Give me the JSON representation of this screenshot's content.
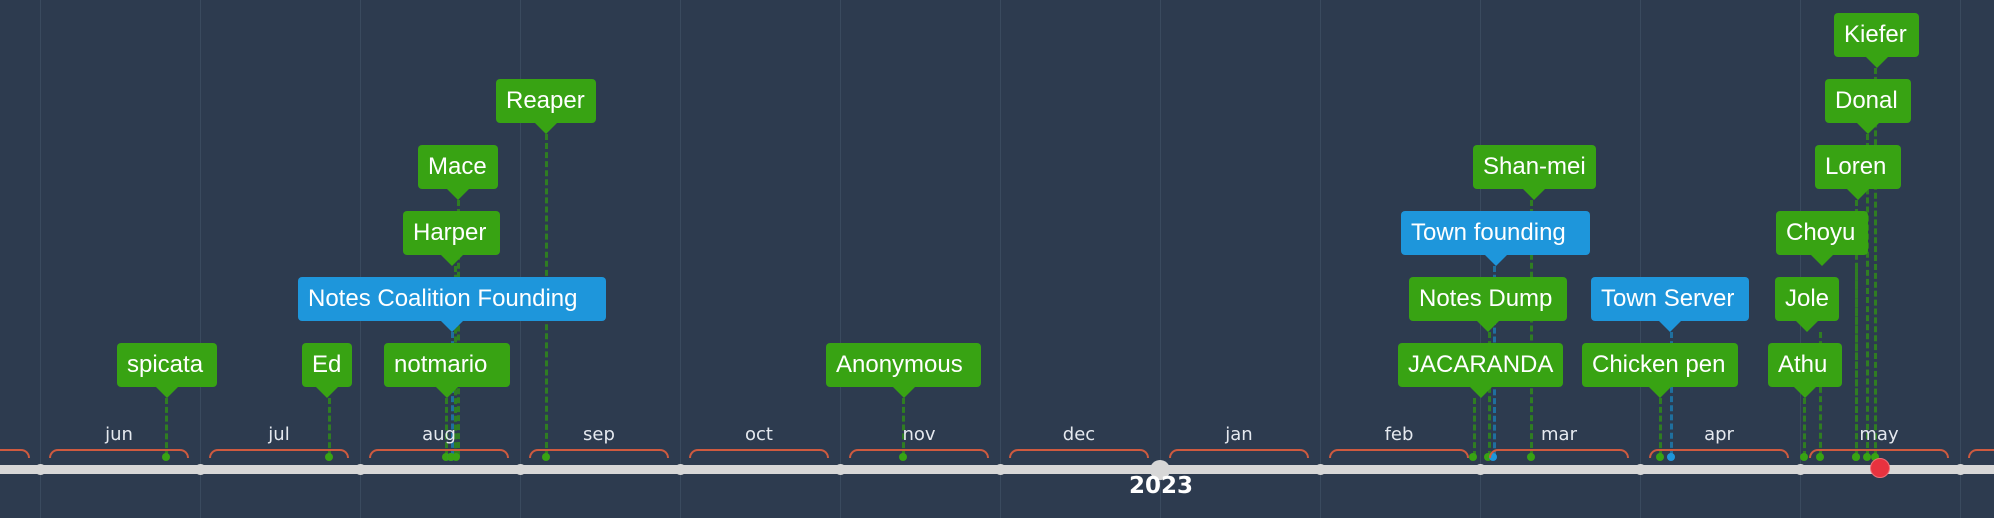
{
  "timeline": {
    "year_label": "2023",
    "months": [
      "jun",
      "jul",
      "aug",
      "sep",
      "oct",
      "nov",
      "dec",
      "jan",
      "feb",
      "mar",
      "apr",
      "may"
    ],
    "colors": {
      "background": "#2d3b4f",
      "axis": "#d7d7d7",
      "bracket": "#cf5a3f",
      "person_event": "#38a313",
      "milestone_event": "#1e96db",
      "now_marker": "#e8323f"
    },
    "events": [
      {
        "label": "spicata",
        "kind": "person"
      },
      {
        "label": "Ed",
        "kind": "person"
      },
      {
        "label": "notmario",
        "kind": "person"
      },
      {
        "label": "Notes Coalition Founding",
        "kind": "milestone"
      },
      {
        "label": "Harper",
        "kind": "person"
      },
      {
        "label": "Mace",
        "kind": "person"
      },
      {
        "label": "Reaper",
        "kind": "person"
      },
      {
        "label": "Anonymous",
        "kind": "person"
      },
      {
        "label": "JACARANDA",
        "kind": "person"
      },
      {
        "label": "Notes Dump",
        "kind": "person"
      },
      {
        "label": "Town founding",
        "kind": "milestone"
      },
      {
        "label": "Shan-mei",
        "kind": "person"
      },
      {
        "label": "Chicken pen",
        "kind": "person"
      },
      {
        "label": "Town Server",
        "kind": "milestone"
      },
      {
        "label": "Athu",
        "kind": "person"
      },
      {
        "label": "Jole",
        "kind": "person"
      },
      {
        "label": "Choyu",
        "kind": "person"
      },
      {
        "label": "Loren",
        "kind": "person"
      },
      {
        "label": "Donal",
        "kind": "person"
      },
      {
        "label": "Kiefer",
        "kind": "person"
      }
    ]
  }
}
